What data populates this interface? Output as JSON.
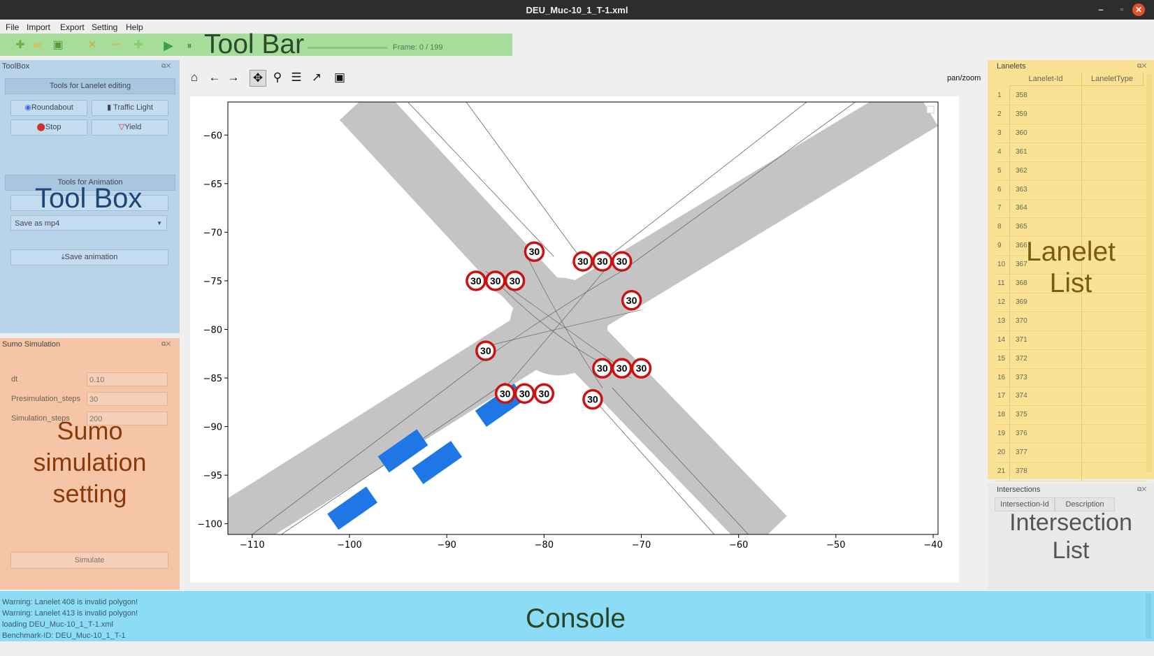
{
  "window": {
    "title": "DEU_Muc-10_1_T-1.xml",
    "min": "–",
    "max": "▫",
    "close": "✕"
  },
  "menu": [
    "File",
    "Import",
    "Export",
    "Setting",
    "Help"
  ],
  "toolbar": {
    "label": "Tool Bar",
    "frame": "Frame: 0 / 199",
    "icons": [
      "plus-icon",
      "open-folder-icon",
      "save-icon",
      "cross-icon",
      "edit-icon",
      "add-icon",
      "play-icon",
      "pause-icon"
    ]
  },
  "toolbox": {
    "title": "ToolBox",
    "lanelet_editing": "Tools for Lanelet editing",
    "roundabout": "Roundabout",
    "traffic_light": "Traffic Light",
    "stop": "Stop",
    "yield": "Yield",
    "animation": "Tools for Animation",
    "overlay_label": "Tool Box",
    "save_format": "Save as mp4",
    "save_animation": "Save animation"
  },
  "sumo": {
    "title": "Sumo Simulation",
    "dt_label": "dt",
    "dt_value": "0.10",
    "presim_label": "Presimulation_steps",
    "presim_value": "30",
    "sim_label": "Simulation_steps",
    "sim_value": "200",
    "overlay_label_1": "Sumo",
    "overlay_label_2": "simulation",
    "overlay_label_3": "setting",
    "simulate": "Simulate"
  },
  "plot": {
    "mode": "pan/zoom",
    "x_ticks": [
      "−110",
      "−100",
      "−90",
      "−80",
      "−70",
      "−60",
      "−50",
      "−40"
    ],
    "y_ticks": [
      "−60",
      "−65",
      "−70",
      "−75",
      "−80",
      "−85",
      "−90",
      "−95",
      "−100"
    ],
    "speed_sign": "30",
    "signs": [
      [
        -81,
        -72
      ],
      [
        -85,
        -75
      ],
      [
        -83,
        -75
      ],
      [
        -87,
        -75
      ],
      [
        -76,
        -73
      ],
      [
        -74,
        -73
      ],
      [
        -72,
        -73
      ],
      [
        -71,
        -77
      ],
      [
        -86,
        -82.2
      ],
      [
        -74,
        -84
      ],
      [
        -72,
        -84
      ],
      [
        -70,
        -84
      ],
      [
        -84,
        -86.6
      ],
      [
        -82,
        -86.6
      ],
      [
        -80,
        -86.6
      ],
      [
        -75,
        -87.2
      ]
    ],
    "vehicles": [
      [
        -84.5,
        -87.8
      ],
      [
        -94.5,
        -92.5
      ],
      [
        -91,
        -93.7
      ],
      [
        -99.7,
        -98.4
      ]
    ]
  },
  "lanelets": {
    "title": "Lanelets",
    "col_id": "Lanelet-Id",
    "col_type": "LaneletType",
    "rows": [
      [
        "1",
        "358"
      ],
      [
        "2",
        "359"
      ],
      [
        "3",
        "360"
      ],
      [
        "4",
        "361"
      ],
      [
        "5",
        "362"
      ],
      [
        "6",
        "363"
      ],
      [
        "7",
        "364"
      ],
      [
        "8",
        "365"
      ],
      [
        "9",
        "366"
      ],
      [
        "10",
        "367"
      ],
      [
        "11",
        "368"
      ],
      [
        "12",
        "369"
      ],
      [
        "13",
        "370"
      ],
      [
        "14",
        "371"
      ],
      [
        "15",
        "372"
      ],
      [
        "16",
        "373"
      ],
      [
        "17",
        "374"
      ],
      [
        "18",
        "375"
      ],
      [
        "19",
        "376"
      ],
      [
        "20",
        "377"
      ],
      [
        "21",
        "378"
      ]
    ],
    "overlay_label_1": "Lanelet",
    "overlay_label_2": "List"
  },
  "intersections": {
    "title": "Intersections",
    "col_id": "Intersection-Id",
    "col_desc": "Description",
    "overlay_label_1": "Intersection",
    "overlay_label_2": "List"
  },
  "console": {
    "label": "Console",
    "lines": [
      "Warning: Lanelet 408 is invalid polygon!",
      "Warning: Lanelet 413 is invalid polygon!",
      "loading DEU_Muc-10_1_T-1.xml",
      "Benchmark-ID: DEU_Muc-10_1_T-1"
    ]
  },
  "colors": {
    "toolbar": "#a6dd9a",
    "toolbox": "#b9d4ea",
    "sumo": "#f6c4a6",
    "lanelets": "#fbe193",
    "console": "#8ddcf6",
    "vehicle": "#1f77e6",
    "sign_ring": "#cc1111"
  }
}
